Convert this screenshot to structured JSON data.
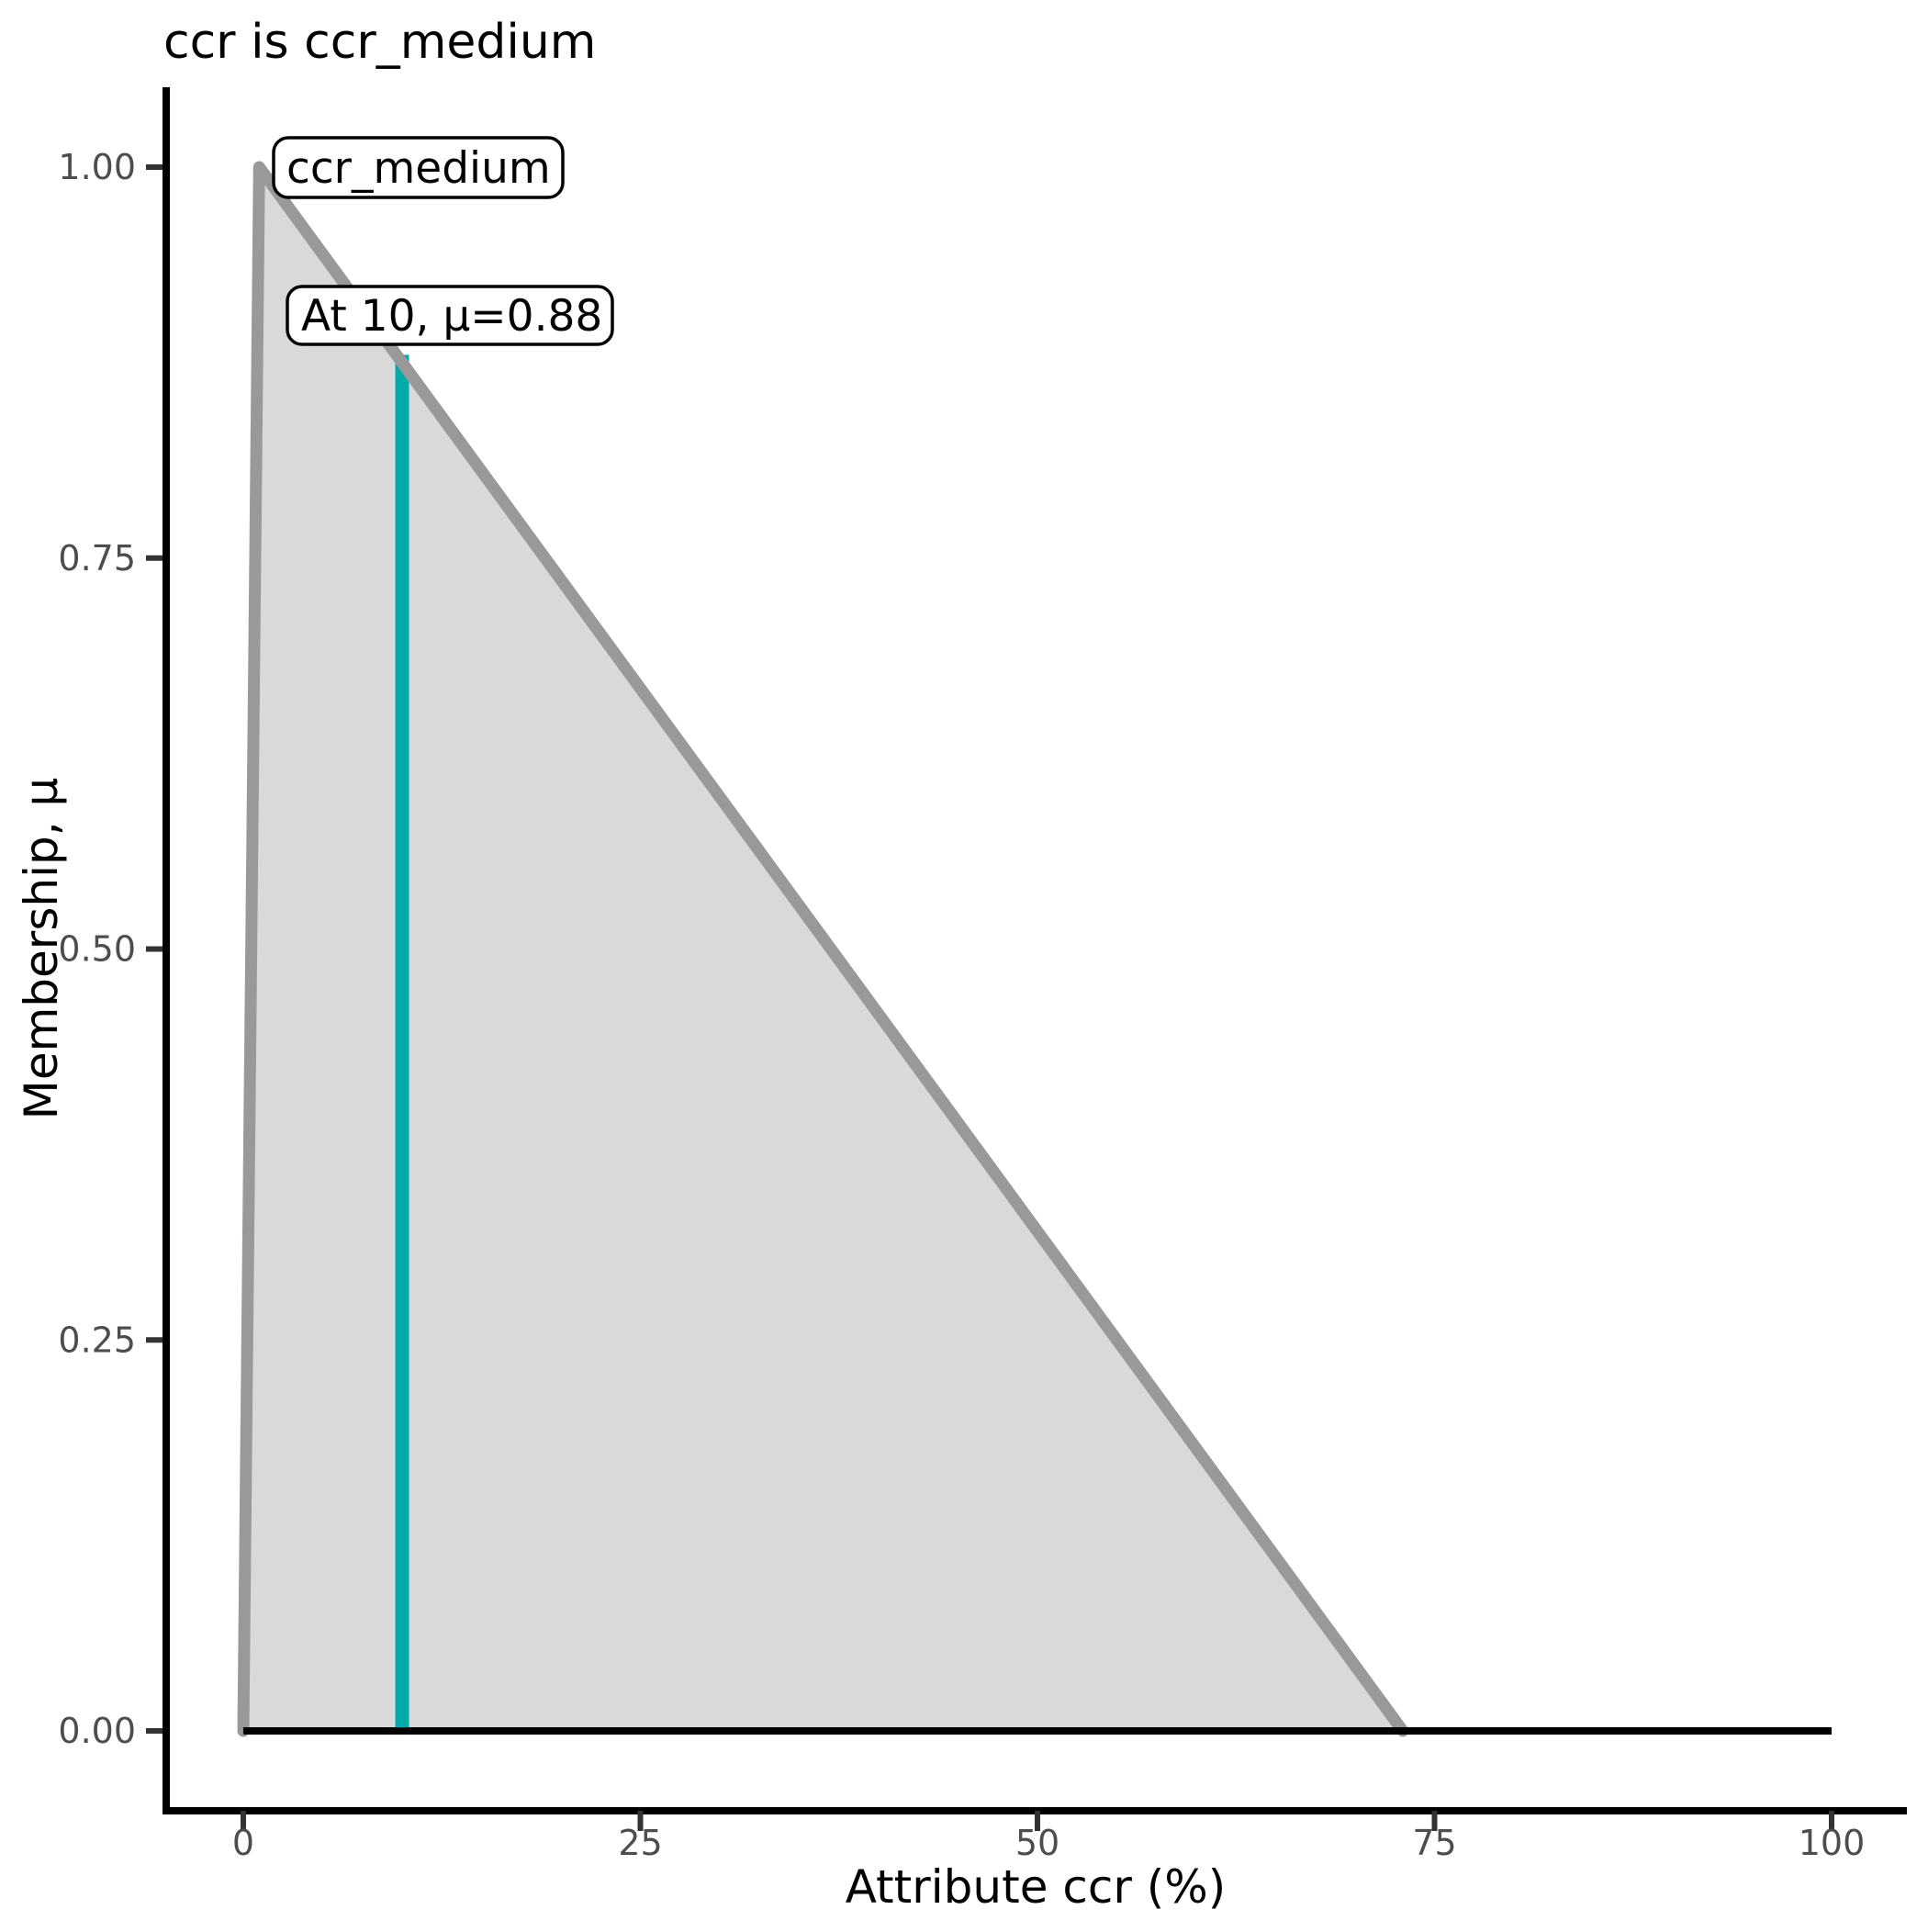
{
  "title": "ccr is ccr_medium",
  "chart_data": {
    "type": "area",
    "title": "ccr is ccr_medium",
    "xlabel": "Attribute ccr (%)",
    "ylabel": "Membership, μ",
    "xlim": [
      -5,
      105
    ],
    "ylim": [
      -0.05,
      1.05
    ],
    "grid": false,
    "legend_position": "none",
    "x_ticks": [
      {
        "value": 0,
        "label": "0"
      },
      {
        "value": 25,
        "label": "25"
      },
      {
        "value": 50,
        "label": "50"
      },
      {
        "value": 75,
        "label": "75"
      },
      {
        "value": 100,
        "label": "100"
      }
    ],
    "y_ticks": [
      {
        "value": 0.0,
        "label": "0.00"
      },
      {
        "value": 0.25,
        "label": "0.25"
      },
      {
        "value": 0.5,
        "label": "0.50"
      },
      {
        "value": 0.75,
        "label": "0.75"
      },
      {
        "value": 1.0,
        "label": "1.00"
      }
    ],
    "membership_function": {
      "name": "ccr_medium",
      "shape": "triangle",
      "points_x_mu": [
        [
          0,
          0
        ],
        [
          1,
          1
        ],
        [
          73,
          0
        ]
      ],
      "fill_color": "#D9D9D9",
      "stroke_color": "#999999"
    },
    "baseline": {
      "points_x_mu": [
        [
          0,
          0
        ],
        [
          100,
          0
        ]
      ],
      "color": "#000000"
    },
    "evaluation": {
      "x": 10,
      "mu": 0.88,
      "color": "#00ABA9"
    },
    "annotations": [
      {
        "text": "ccr_medium"
      },
      {
        "text": "At 10, μ=0.88"
      }
    ]
  }
}
